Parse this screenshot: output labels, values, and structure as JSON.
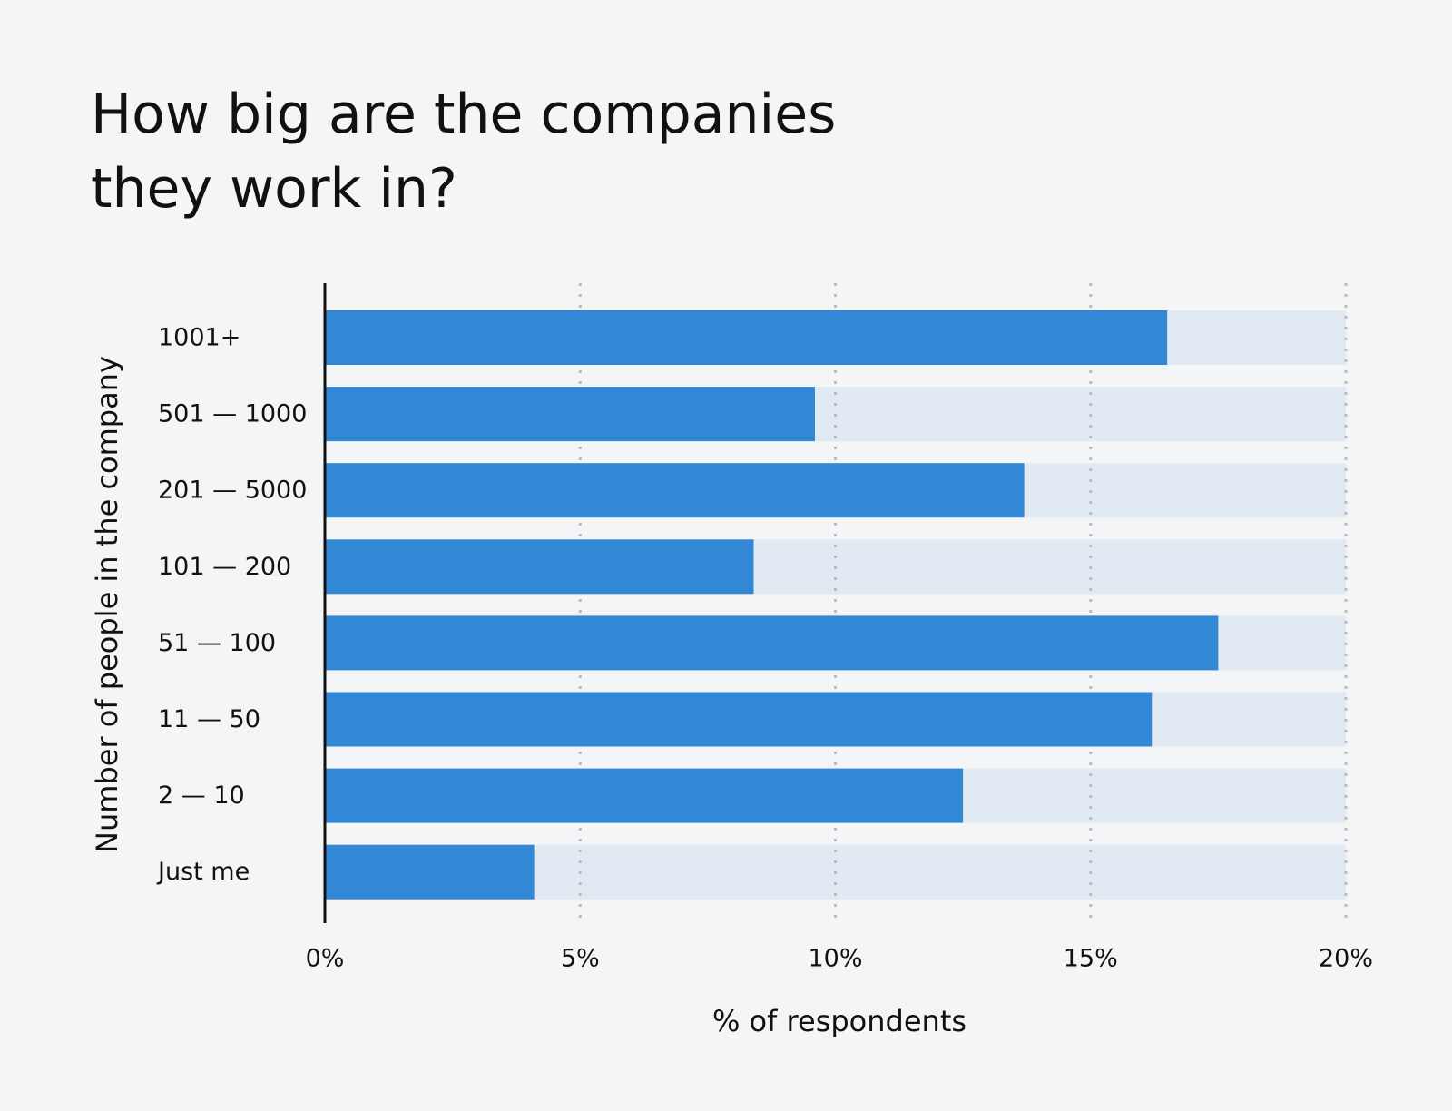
{
  "chart_data": {
    "type": "bar",
    "orientation": "horizontal",
    "title": [
      "How big are the companies",
      "they work in?"
    ],
    "x_label": "% of respondents",
    "y_label": "Number of people in the company",
    "categories": [
      "1001+",
      "501 — 1000",
      "201 — 5000",
      "101 — 200",
      "51 — 100",
      "11 — 50",
      "2 — 10",
      "Just me"
    ],
    "values": [
      16.5,
      9.6,
      13.7,
      8.4,
      17.5,
      16.2,
      12.5,
      4.1
    ],
    "color": "#3388d6",
    "track_color": "#e1e9f2",
    "xlim": [
      0,
      20
    ],
    "xticks": [
      {
        "value": 0,
        "label": "0%"
      },
      {
        "value": 5,
        "label": "5%"
      },
      {
        "value": 10,
        "label": "10%"
      },
      {
        "value": 15,
        "label": "15%"
      },
      {
        "value": 20,
        "label": "20%"
      }
    ],
    "grid": true
  }
}
